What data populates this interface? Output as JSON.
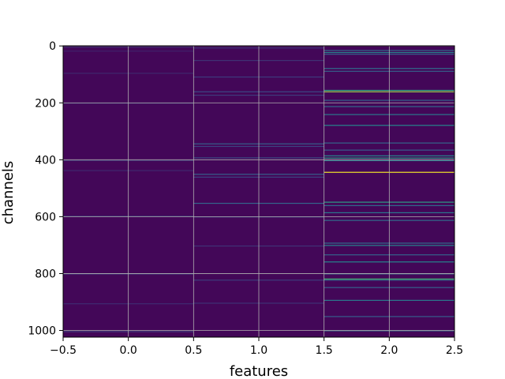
{
  "chart_data": {
    "type": "heatmap",
    "xlabel": "features",
    "ylabel": "channels",
    "xlim": [
      -0.5,
      2.5
    ],
    "ylim": [
      1023.5,
      -0.5
    ],
    "n_rows": 1024,
    "columns": [
      0,
      1,
      2
    ],
    "x_ticks": [
      -0.5,
      0.0,
      0.5,
      1.0,
      1.5,
      2.0,
      2.5
    ],
    "x_tick_labels": [
      "−0.5",
      "0.0",
      "0.5",
      "1.0",
      "1.5",
      "2.0",
      "2.5"
    ],
    "y_ticks": [
      0,
      200,
      400,
      600,
      800,
      1000
    ],
    "y_tick_labels": [
      "0",
      "200",
      "400",
      "600",
      "800",
      "1000"
    ],
    "grid": true,
    "colormap": "viridis",
    "value_range": [
      0,
      1
    ],
    "background_value": 0.02,
    "highlights": [
      {
        "column": 0,
        "rows": [
          3,
          17,
          95,
          200,
          402,
          437,
          598,
          800,
          905,
          1003
        ],
        "values": [
          0.12,
          0.1,
          0.12,
          0.15,
          0.14,
          0.12,
          0.22,
          0.2,
          0.13,
          0.18
        ]
      },
      {
        "column": 1,
        "rows": [
          6,
          50,
          108,
          160,
          172,
          343,
          352,
          392,
          450,
          460,
          552,
          600,
          702,
          822,
          903
        ],
        "values": [
          0.15,
          0.15,
          0.18,
          0.22,
          0.18,
          0.3,
          0.2,
          0.22,
          0.3,
          0.2,
          0.32,
          0.18,
          0.15,
          0.18,
          0.15
        ]
      },
      {
        "column": 2,
        "rows": [
          15,
          22,
          28,
          78,
          88,
          155,
          160,
          190,
          212,
          240,
          278,
          340,
          365,
          385,
          393,
          402,
          443,
          548,
          560,
          585,
          612,
          692,
          700,
          733,
          758,
          800,
          818,
          822,
          848,
          893,
          950,
          1000
        ],
        "values": [
          0.35,
          0.45,
          0.3,
          0.35,
          0.3,
          0.55,
          0.85,
          0.32,
          0.35,
          0.4,
          0.45,
          0.32,
          0.3,
          0.45,
          0.55,
          0.4,
          0.98,
          0.55,
          0.35,
          0.4,
          0.35,
          0.35,
          0.45,
          0.32,
          0.45,
          0.35,
          0.65,
          0.35,
          0.3,
          0.4,
          0.3,
          0.35
        ]
      }
    ]
  }
}
